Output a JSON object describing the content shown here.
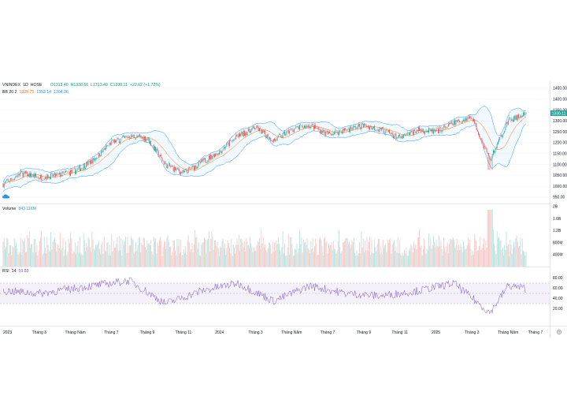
{
  "header": {
    "symbol": "VNINDEX",
    "interval": "1D",
    "exchange": "HOSE",
    "ohlc": {
      "o": "O1313.40",
      "h": "H1330.66",
      "l": "L1313.40",
      "c": "C1330.11",
      "chg": "+22.62 (+1.72%)"
    },
    "bb": {
      "label": "BB 20 2",
      "basis": "1329.75",
      "upper": "1353.14",
      "lower": "1304.36"
    },
    "last_price": "1330.11"
  },
  "volume_pane": {
    "label": "Volume",
    "value": "843.116M",
    "ticks": [
      "2B",
      "1.6B",
      "1.2B",
      "800M",
      "400M"
    ]
  },
  "rsi_pane": {
    "label": "RSI",
    "length": "14",
    "value": "59.83",
    "ticks": [
      "80.00",
      "60.00",
      "40.00",
      "20.00"
    ]
  },
  "price_ticks": [
    "1450.00",
    "1400.00",
    "1350.00",
    "1300.00",
    "1250.00",
    "1200.00",
    "1150.00",
    "1100.00",
    "1050.00",
    "1000.00",
    "950.00"
  ],
  "time_ticks": [
    "2023",
    "Tháng 3",
    "Tháng Năm",
    "Tháng 7",
    "Tháng 9",
    "Tháng 11",
    "2024",
    "Tháng 3",
    "Tháng Năm",
    "Tháng 7",
    "Tháng 9",
    "Tháng 11",
    "2025",
    "Tháng 3",
    "Tháng Năm",
    "Tháng 7"
  ],
  "colors": {
    "up": "#26a69a",
    "down": "#ef5350",
    "bb_band": "#2196f3",
    "bb_basis": "#ff6d00",
    "rsi": "#7e57c2",
    "rsi_fill": "#ede7f6"
  },
  "chart_data": {
    "type": "candlestick",
    "x_range": [
      "2023-01",
      "2025-06"
    ],
    "price_range": [
      950,
      1450
    ],
    "price_anchors": [
      {
        "date": "2023-01",
        "close": 1010
      },
      {
        "date": "2023-02",
        "close": 1060
      },
      {
        "date": "2023-03",
        "close": 1040
      },
      {
        "date": "2023-04",
        "close": 1050
      },
      {
        "date": "2023-05",
        "close": 1070
      },
      {
        "date": "2023-06",
        "close": 1120
      },
      {
        "date": "2023-07",
        "close": 1200
      },
      {
        "date": "2023-08",
        "close": 1230
      },
      {
        "date": "2023-09",
        "close": 1220
      },
      {
        "date": "2023-10",
        "close": 1100
      },
      {
        "date": "2023-11",
        "close": 1060
      },
      {
        "date": "2023-12",
        "close": 1110
      },
      {
        "date": "2024-01",
        "close": 1160
      },
      {
        "date": "2024-02",
        "close": 1230
      },
      {
        "date": "2024-03",
        "close": 1270
      },
      {
        "date": "2024-04",
        "close": 1210
      },
      {
        "date": "2024-05",
        "close": 1260
      },
      {
        "date": "2024-06",
        "close": 1280
      },
      {
        "date": "2024-07",
        "close": 1240
      },
      {
        "date": "2024-08",
        "close": 1260
      },
      {
        "date": "2024-09",
        "close": 1280
      },
      {
        "date": "2024-10",
        "close": 1260
      },
      {
        "date": "2024-11",
        "close": 1220
      },
      {
        "date": "2024-12",
        "close": 1260
      },
      {
        "date": "2025-01",
        "close": 1250
      },
      {
        "date": "2025-02",
        "close": 1290
      },
      {
        "date": "2025-03",
        "close": 1320
      },
      {
        "date": "2025-04",
        "close": 1120
      },
      {
        "date": "2025-05",
        "close": 1300
      },
      {
        "date": "2025-06",
        "close": 1330
      }
    ],
    "volume_range": [
      0,
      2000000000
    ],
    "rsi_range": [
      0,
      100
    ],
    "rsi_bands": [
      30,
      70
    ],
    "rsi_anchors": [
      {
        "date": "2023-01",
        "rsi": 55
      },
      {
        "date": "2023-03",
        "rsi": 50
      },
      {
        "date": "2023-06",
        "rsi": 65
      },
      {
        "date": "2023-08",
        "rsi": 75
      },
      {
        "date": "2023-10",
        "rsi": 30
      },
      {
        "date": "2023-12",
        "rsi": 55
      },
      {
        "date": "2024-02",
        "rsi": 70
      },
      {
        "date": "2024-04",
        "rsi": 35
      },
      {
        "date": "2024-06",
        "rsi": 65
      },
      {
        "date": "2024-08",
        "rsi": 50
      },
      {
        "date": "2024-10",
        "rsi": 45
      },
      {
        "date": "2024-12",
        "rsi": 55
      },
      {
        "date": "2025-02",
        "rsi": 70
      },
      {
        "date": "2025-04",
        "rsi": 12
      },
      {
        "date": "2025-05",
        "rsi": 65
      },
      {
        "date": "2025-06",
        "rsi": 59.83
      }
    ]
  }
}
